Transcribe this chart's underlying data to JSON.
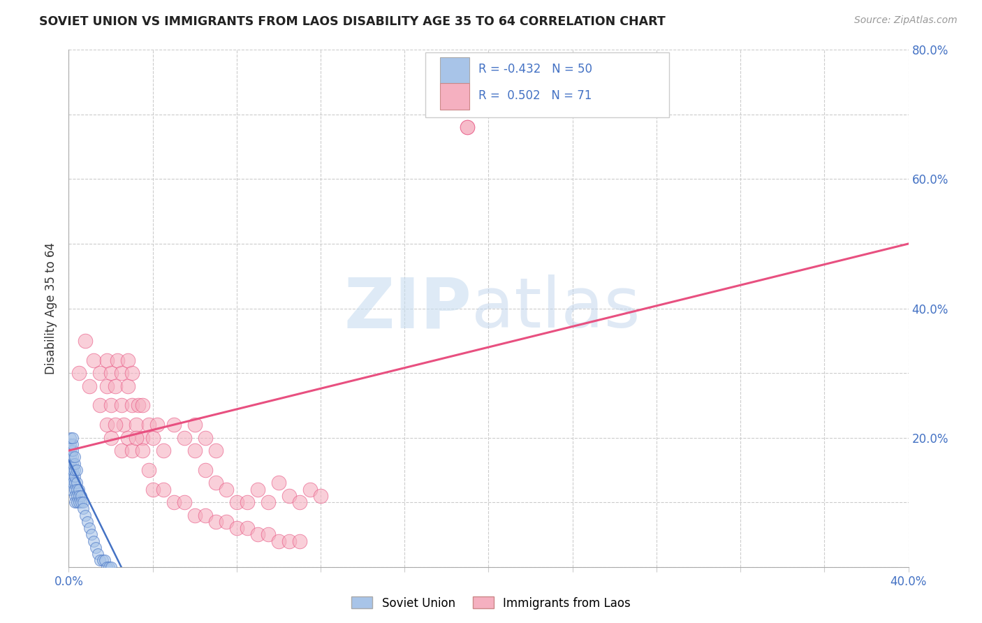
{
  "title": "SOVIET UNION VS IMMIGRANTS FROM LAOS DISABILITY AGE 35 TO 64 CORRELATION CHART",
  "source": "Source: ZipAtlas.com",
  "ylabel": "Disability Age 35 to 64",
  "xlim": [
    0.0,
    0.4
  ],
  "ylim": [
    0.0,
    0.8
  ],
  "color_soviet": "#a8c4e8",
  "color_laos": "#f5b0c0",
  "color_soviet_line": "#4472c4",
  "color_laos_line": "#e85080",
  "color_axis_labels": "#4472c4",
  "watermark_zip": "ZIP",
  "watermark_atlas": "atlas",
  "soviet_line_x": [
    0.0,
    0.025
  ],
  "soviet_line_y": [
    0.165,
    0.0
  ],
  "laos_line_x": [
    0.0,
    0.4
  ],
  "laos_line_y": [
    0.18,
    0.5
  ],
  "soviet_x": [
    0.001,
    0.001,
    0.001,
    0.001,
    0.001,
    0.002,
    0.002,
    0.002,
    0.002,
    0.003,
    0.003,
    0.003,
    0.003,
    0.003,
    0.003,
    0.004,
    0.004,
    0.004,
    0.004,
    0.005,
    0.005,
    0.005,
    0.006,
    0.006,
    0.007,
    0.007,
    0.008,
    0.009,
    0.01,
    0.011,
    0.012,
    0.013,
    0.014,
    0.015,
    0.016,
    0.017,
    0.018,
    0.019,
    0.02,
    0.001,
    0.001,
    0.002,
    0.002,
    0.003,
    0.004,
    0.001,
    0.002,
    0.003,
    0.001,
    0.002
  ],
  "soviet_y": [
    0.14,
    0.15,
    0.16,
    0.13,
    0.12,
    0.14,
    0.15,
    0.16,
    0.13,
    0.13,
    0.14,
    0.15,
    0.12,
    0.11,
    0.1,
    0.13,
    0.12,
    0.11,
    0.1,
    0.12,
    0.11,
    0.1,
    0.11,
    0.1,
    0.1,
    0.09,
    0.08,
    0.07,
    0.06,
    0.05,
    0.04,
    0.03,
    0.02,
    0.01,
    0.01,
    0.01,
    0.0,
    0.0,
    0.0,
    0.17,
    0.18,
    0.17,
    0.18,
    0.16,
    0.15,
    0.19,
    0.19,
    0.17,
    0.2,
    0.2
  ],
  "laos_x": [
    0.005,
    0.008,
    0.01,
    0.012,
    0.015,
    0.015,
    0.018,
    0.018,
    0.02,
    0.02,
    0.022,
    0.023,
    0.025,
    0.025,
    0.026,
    0.028,
    0.028,
    0.03,
    0.03,
    0.032,
    0.033,
    0.035,
    0.035,
    0.038,
    0.04,
    0.042,
    0.045,
    0.05,
    0.055,
    0.06,
    0.065,
    0.07,
    0.075,
    0.08,
    0.085,
    0.09,
    0.095,
    0.1,
    0.105,
    0.11,
    0.115,
    0.12,
    0.06,
    0.065,
    0.07,
    0.018,
    0.02,
    0.022,
    0.025,
    0.028,
    0.03,
    0.032,
    0.035,
    0.038,
    0.04,
    0.045,
    0.05,
    0.055,
    0.06,
    0.065,
    0.07,
    0.075,
    0.08,
    0.085,
    0.09,
    0.095,
    0.1,
    0.105,
    0.11,
    0.19,
    0.19
  ],
  "laos_y": [
    0.3,
    0.35,
    0.28,
    0.32,
    0.25,
    0.3,
    0.28,
    0.32,
    0.25,
    0.3,
    0.28,
    0.32,
    0.25,
    0.3,
    0.22,
    0.28,
    0.32,
    0.25,
    0.3,
    0.22,
    0.25,
    0.2,
    0.25,
    0.22,
    0.2,
    0.22,
    0.18,
    0.22,
    0.2,
    0.18,
    0.15,
    0.13,
    0.12,
    0.1,
    0.1,
    0.12,
    0.1,
    0.13,
    0.11,
    0.1,
    0.12,
    0.11,
    0.22,
    0.2,
    0.18,
    0.22,
    0.2,
    0.22,
    0.18,
    0.2,
    0.18,
    0.2,
    0.18,
    0.15,
    0.12,
    0.12,
    0.1,
    0.1,
    0.08,
    0.08,
    0.07,
    0.07,
    0.06,
    0.06,
    0.05,
    0.05,
    0.04,
    0.04,
    0.04,
    0.68,
    0.68
  ]
}
